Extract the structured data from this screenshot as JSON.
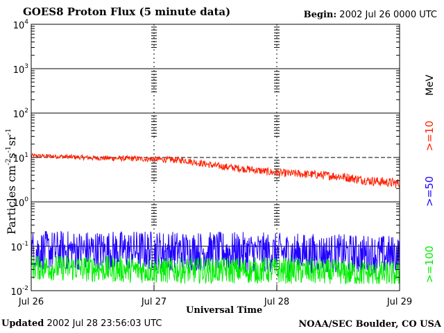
{
  "header": {
    "title": "GOES8 Proton Flux (5 minute data)",
    "begin_label": "Begin:",
    "begin_value": "2002 Jul 26 0000 UTC"
  },
  "footer": {
    "updated_label": "Updated",
    "updated_value": "2002 Jul 28 23:56:03 UTC",
    "credit": "NOAA/SEC Boulder, CO USA"
  },
  "chart_data": {
    "type": "line",
    "title": "GOES8 Proton Flux (5 minute data)",
    "xlabel": "Universal Time",
    "ylabel": "Particles cm⁻²s⁻¹sr⁻¹",
    "ylabel_parts": [
      "Particles cm",
      "-2",
      "s",
      "-1",
      "sr",
      "-1"
    ],
    "y_scale": "log",
    "ylim": [
      0.01,
      10000
    ],
    "y_ticks": [
      {
        "exp": "-2",
        "value": 0.01
      },
      {
        "exp": "-1",
        "value": 0.1
      },
      {
        "exp": "0",
        "value": 1
      },
      {
        "exp": "1",
        "value": 10
      },
      {
        "exp": "2",
        "value": 100
      },
      {
        "exp": "3",
        "value": 1000
      },
      {
        "exp": "4",
        "value": 10000
      }
    ],
    "xlim": [
      "2002-07-26 00:00",
      "2002-07-29 00:00"
    ],
    "x_ticks": [
      "Jul 26",
      "Jul 27",
      "Jul 28",
      "Jul 29"
    ],
    "units_label": "MeV",
    "series": [
      {
        "name": ">=10",
        "color": "#ff2000",
        "x": [
          "2002-07-26 00:00",
          "2002-07-26 06:00",
          "2002-07-26 12:00",
          "2002-07-26 18:00",
          "2002-07-27 00:00",
          "2002-07-27 06:00",
          "2002-07-27 12:00",
          "2002-07-27 18:00",
          "2002-07-28 00:00",
          "2002-07-28 06:00",
          "2002-07-28 12:00",
          "2002-07-28 18:00",
          "2002-07-29 00:00"
        ],
        "values": [
          11,
          10.5,
          9.8,
          9.5,
          9.2,
          8.6,
          6.5,
          5.5,
          4.5,
          4.2,
          3.8,
          3.0,
          2.6
        ]
      },
      {
        "name": ">=50",
        "color": "#2000ff",
        "x": [
          "2002-07-26 00:00",
          "2002-07-27 00:00",
          "2002-07-28 00:00",
          "2002-07-29 00:00"
        ],
        "values": [
          0.09,
          0.09,
          0.08,
          0.07
        ]
      },
      {
        "name": ">=100",
        "color": "#00ee00",
        "x": [
          "2002-07-26 00:00",
          "2002-07-27 00:00",
          "2002-07-28 00:00",
          "2002-07-29 00:00"
        ],
        "values": [
          0.03,
          0.025,
          0.025,
          0.02
        ]
      }
    ],
    "grid": true,
    "legend": "right, vertical"
  }
}
